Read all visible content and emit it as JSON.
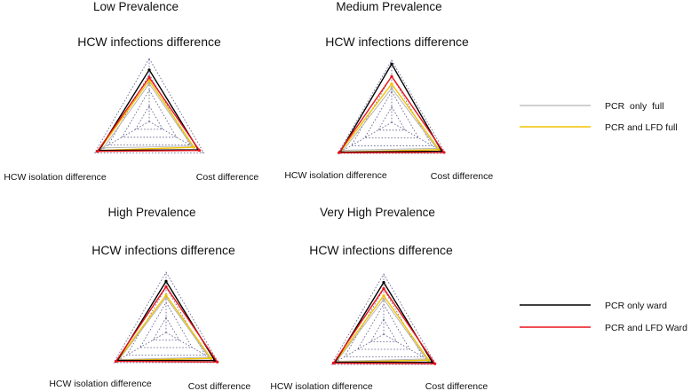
{
  "chart_data": {
    "type": "radar",
    "axes": [
      "HCW infections difference",
      "Cost difference",
      "HCW isolation difference"
    ],
    "legend": [
      {
        "name": "PCR  only  full",
        "color": "#b4b4b4"
      },
      {
        "name": "PCR and LFD full",
        "color": "#f2c200"
      },
      {
        "name": "PCR only ward",
        "color": "#000000"
      },
      {
        "name": "PCR and LFD Ward",
        "color": "#e8141c"
      }
    ],
    "grid_levels": [
      0.25,
      0.5,
      0.75,
      1.0
    ],
    "panels": [
      {
        "title": "Low Prevalence",
        "series": [
          {
            "name": "PCR  only  full",
            "values": [
              0.6,
              0.78,
              0.84
            ]
          },
          {
            "name": "PCR and LFD full",
            "values": [
              0.65,
              0.82,
              0.92
            ]
          },
          {
            "name": "PCR only ward",
            "values": [
              0.82,
              0.9,
              0.92
            ]
          },
          {
            "name": "PCR and LFD Ward",
            "values": [
              0.7,
              0.92,
              0.95
            ]
          }
        ]
      },
      {
        "title": "Medium Prevalence",
        "series": [
          {
            "name": "PCR  only  full",
            "values": [
              0.55,
              0.84,
              0.9
            ]
          },
          {
            "name": "PCR and LFD full",
            "values": [
              0.62,
              0.88,
              0.96
            ]
          },
          {
            "name": "PCR only ward",
            "values": [
              0.94,
              0.93,
              0.96
            ]
          },
          {
            "name": "PCR and LFD Ward",
            "values": [
              0.74,
              0.97,
              0.98
            ]
          }
        ]
      },
      {
        "title": "High Prevalence",
        "series": [
          {
            "name": "PCR  only  full",
            "values": [
              0.58,
              0.82,
              0.9
            ]
          },
          {
            "name": "PCR and LFD full",
            "values": [
              0.62,
              0.86,
              0.93
            ]
          },
          {
            "name": "PCR only ward",
            "values": [
              0.85,
              0.93,
              0.93
            ]
          },
          {
            "name": "PCR and LFD Ward",
            "values": [
              0.76,
              0.98,
              0.96
            ]
          }
        ]
      },
      {
        "title": "Very High Prevalence",
        "series": [
          {
            "name": "PCR  only  full",
            "values": [
              0.58,
              0.82,
              0.9
            ]
          },
          {
            "name": "PCR and LFD full",
            "values": [
              0.64,
              0.86,
              0.93
            ]
          },
          {
            "name": "PCR only ward",
            "values": [
              0.86,
              0.93,
              0.93
            ]
          },
          {
            "name": "PCR and LFD Ward",
            "values": [
              0.76,
              0.98,
              0.96
            ]
          }
        ]
      }
    ]
  }
}
